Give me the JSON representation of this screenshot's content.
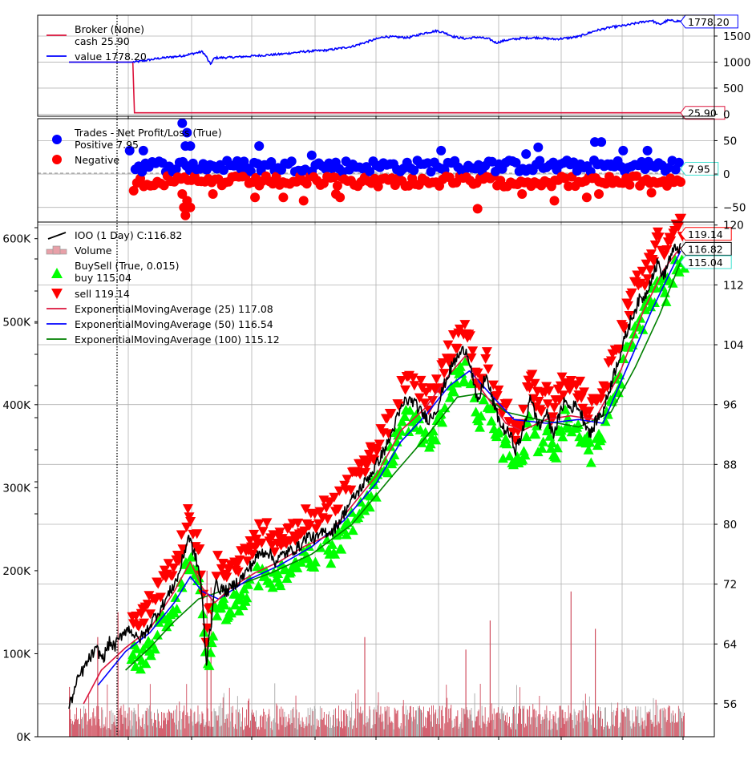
{
  "chart_data": [
    {
      "panel": "broker",
      "type": "line",
      "legend": {
        "title": "Broker (None)",
        "entries": [
          {
            "name": "cash 25.90",
            "color": "#dc143c"
          },
          {
            "name": "value 1778.20",
            "color": "#0000ff"
          }
        ]
      },
      "yticks": [
        "1500",
        "1000",
        "500",
        "0"
      ],
      "ytick_values": [
        1500,
        1000,
        500,
        0
      ],
      "ylim": [
        -40,
        1900
      ],
      "series": [
        {
          "name": "cash 25.90",
          "color": "#dc143c",
          "values": [
            [
              0,
              1000
            ],
            [
              79,
              1000
            ],
            [
              81,
              25.9
            ],
            [
              760,
              25.9
            ]
          ],
          "last_label": "25.90"
        },
        {
          "name": "value 1778.20",
          "color": "#0000ff",
          "values": [
            [
              0,
              1000
            ],
            [
              79,
              1000
            ],
            [
              90,
              1020
            ],
            [
              110,
              1070
            ],
            [
              140,
              1120
            ],
            [
              155,
              1170
            ],
            [
              165,
              1200
            ],
            [
              170,
              1100
            ],
            [
              172,
              1030
            ],
            [
              175,
              960
            ],
            [
              180,
              1080
            ],
            [
              200,
              1090
            ],
            [
              230,
              1120
            ],
            [
              260,
              1150
            ],
            [
              290,
              1200
            ],
            [
              320,
              1230
            ],
            [
              350,
              1300
            ],
            [
              375,
              1420
            ],
            [
              390,
              1490
            ],
            [
              405,
              1480
            ],
            [
              420,
              1470
            ],
            [
              440,
              1560
            ],
            [
              455,
              1600
            ],
            [
              465,
              1560
            ],
            [
              475,
              1490
            ],
            [
              490,
              1450
            ],
            [
              505,
              1480
            ],
            [
              520,
              1440
            ],
            [
              528,
              1370
            ],
            [
              540,
              1420
            ],
            [
              560,
              1460
            ],
            [
              580,
              1470
            ],
            [
              600,
              1440
            ],
            [
              615,
              1460
            ],
            [
              630,
              1490
            ],
            [
              650,
              1600
            ],
            [
              670,
              1670
            ],
            [
              690,
              1710
            ],
            [
              705,
              1760
            ],
            [
              720,
              1800
            ],
            [
              730,
              1720
            ],
            [
              740,
              1800
            ],
            [
              750,
              1790
            ],
            [
              760,
              1778.2
            ]
          ],
          "last_label": "1778.20"
        }
      ]
    },
    {
      "panel": "trades",
      "type": "scatter",
      "legend": {
        "title": "Trades - Net Profit/Loss (True)",
        "entries": [
          {
            "name": "Positive 7.95",
            "color": "#0000ff"
          },
          {
            "name": "Negative",
            "color": "#ff0000"
          }
        ]
      },
      "yticks": [
        "50",
        "0",
        "−50"
      ],
      "ytick_values": [
        50,
        0,
        -50
      ],
      "ylim": [
        -72,
        83
      ],
      "last_label": "7.95",
      "positive_points": [
        [
          75,
          35
        ],
        [
          92,
          35
        ],
        [
          140,
          76
        ],
        [
          146,
          62
        ],
        [
          144,
          42
        ],
        [
          150,
          42
        ],
        [
          235,
          42
        ],
        [
          565,
          30
        ],
        [
          580,
          40
        ],
        [
          460,
          35
        ],
        [
          650,
          48
        ],
        [
          658,
          48
        ],
        [
          685,
          35
        ],
        [
          715,
          35
        ],
        [
          670,
          12
        ],
        [
          300,
          28
        ]
      ],
      "negative_points": [
        [
          80,
          -25
        ],
        [
          140,
          -30
        ],
        [
          142,
          -50
        ],
        [
          144,
          -62
        ],
        [
          146,
          -40
        ],
        [
          150,
          -50
        ],
        [
          178,
          -30
        ],
        [
          230,
          -35
        ],
        [
          265,
          -35
        ],
        [
          290,
          -40
        ],
        [
          330,
          -30
        ],
        [
          335,
          -35
        ],
        [
          505,
          -52
        ],
        [
          560,
          -30
        ],
        [
          600,
          -40
        ],
        [
          640,
          -35
        ],
        [
          655,
          -30
        ],
        [
          720,
          -28
        ]
      ]
    },
    {
      "panel": "price",
      "type": "line",
      "legend": [
        {
          "name": "IOO (1 Day) C:116.82",
          "color": "#000000"
        },
        {
          "name": "Volume",
          "color": "#e8a0a8"
        },
        {
          "name": "BuySell (True, 0.015)",
          "color": "#00ff00"
        },
        {
          "name": "buy 115.04",
          "color": "#00ff00"
        },
        {
          "name": "sell 119.14",
          "color": "#ff0000"
        },
        {
          "name": "ExponentialMovingAverage (25) 117.08",
          "color": "#dc143c"
        },
        {
          "name": "ExponentialMovingAverage (50) 116.54",
          "color": "#0000ff"
        },
        {
          "name": "ExponentialMovingAverage (100) 115.12",
          "color": "#008000"
        }
      ],
      "yticks_right": [
        "120",
        "112",
        "104",
        "96",
        "88",
        "80",
        "72",
        "64",
        "56"
      ],
      "ytick_values_right": [
        120,
        112,
        104,
        96,
        88,
        80,
        72,
        64,
        56
      ],
      "ylim_right": [
        51.6,
        120.4
      ],
      "yticks_left": [
        "600K",
        "500K",
        "400K",
        "300K",
        "200K",
        "100K",
        "0K"
      ],
      "ytick_values_left": [
        600000,
        500000,
        400000,
        300000,
        200000,
        100000,
        0
      ],
      "ylim_left": [
        0,
        620000
      ],
      "last_labels": [
        {
          "text": "119.14",
          "value": 119.14,
          "border": "#ff0000"
        },
        {
          "text": "116.82",
          "value": 116.82,
          "border": "#000000"
        },
        {
          "text": "115.04",
          "value": 115.04,
          "border": "#40e0d0"
        }
      ],
      "close": [
        [
          0,
          55.5
        ],
        [
          5,
          57.2
        ],
        [
          12,
          59.5
        ],
        [
          20,
          61.0
        ],
        [
          28,
          62.5
        ],
        [
          35,
          63.2
        ],
        [
          42,
          62.0
        ],
        [
          50,
          64.2
        ],
        [
          56,
          63.6
        ],
        [
          62,
          64.6
        ],
        [
          68,
          65.8
        ],
        [
          76,
          66.0
        ],
        [
          85,
          64.5
        ],
        [
          95,
          65.5
        ],
        [
          105,
          67.5
        ],
        [
          115,
          69.0
        ],
        [
          125,
          71.0
        ],
        [
          135,
          73.0
        ],
        [
          142,
          76.0
        ],
        [
          148,
          78.5
        ],
        [
          152,
          77.0
        ],
        [
          158,
          75.0
        ],
        [
          162,
          73.0
        ],
        [
          165,
          70.0
        ],
        [
          168,
          64.0
        ],
        [
          170,
          61.0
        ],
        [
          172,
          64.0
        ],
        [
          176,
          67.0
        ],
        [
          180,
          72.0
        ],
        [
          185,
          71.5
        ],
        [
          195,
          71.0
        ],
        [
          205,
          72.0
        ],
        [
          215,
          73.0
        ],
        [
          225,
          74.5
        ],
        [
          235,
          76.0
        ],
        [
          245,
          76.5
        ],
        [
          255,
          75.0
        ],
        [
          265,
          76.0
        ],
        [
          275,
          76.5
        ],
        [
          285,
          77.0
        ],
        [
          295,
          78.5
        ],
        [
          305,
          78.0
        ],
        [
          315,
          79.0
        ],
        [
          325,
          79.0
        ],
        [
          335,
          80.5
        ],
        [
          345,
          82.5
        ],
        [
          355,
          84.0
        ],
        [
          365,
          85.5
        ],
        [
          375,
          87.0
        ],
        [
          385,
          89.0
        ],
        [
          395,
          91.0
        ],
        [
          405,
          94.0
        ],
        [
          415,
          96.5
        ],
        [
          425,
          96.5
        ],
        [
          435,
          95.0
        ],
        [
          445,
          94.0
        ],
        [
          455,
          95.5
        ],
        [
          465,
          99.0
        ],
        [
          475,
          101.5
        ],
        [
          485,
          103.0
        ],
        [
          490,
          103.5
        ],
        [
          495,
          102.0
        ],
        [
          500,
          99.0
        ],
        [
          505,
          96.0
        ],
        [
          510,
          98.0
        ],
        [
          515,
          100.0
        ],
        [
          520,
          98.0
        ],
        [
          528,
          95.0
        ],
        [
          535,
          93.0
        ],
        [
          545,
          92.0
        ],
        [
          552,
          90.0
        ],
        [
          560,
          92.0
        ],
        [
          566,
          94.5
        ],
        [
          570,
          97.5
        ],
        [
          575,
          95.0
        ],
        [
          582,
          93.0
        ],
        [
          590,
          95.0
        ],
        [
          598,
          92.0
        ],
        [
          605,
          94.0
        ],
        [
          612,
          96.5
        ],
        [
          620,
          95.5
        ],
        [
          628,
          96.0
        ],
        [
          636,
          94.0
        ],
        [
          645,
          92.0
        ],
        [
          652,
          94.0
        ],
        [
          660,
          95.0
        ],
        [
          668,
          98.0
        ],
        [
          676,
          101.0
        ],
        [
          685,
          104.0
        ],
        [
          695,
          107.5
        ],
        [
          705,
          110.0
        ],
        [
          712,
          110.5
        ],
        [
          720,
          113.0
        ],
        [
          728,
          115.0
        ],
        [
          735,
          113.0
        ],
        [
          742,
          115.5
        ],
        [
          750,
          117.0
        ],
        [
          756,
          116.8
        ]
      ],
      "ema25": [
        [
          18,
          56.0
        ],
        [
          40,
          60.5
        ],
        [
          70,
          63.5
        ],
        [
          100,
          66.0
        ],
        [
          130,
          71.0
        ],
        [
          150,
          75.0
        ],
        [
          165,
          71.5
        ],
        [
          180,
          69.5
        ],
        [
          200,
          71.5
        ],
        [
          230,
          73.5
        ],
        [
          260,
          75.0
        ],
        [
          290,
          77.0
        ],
        [
          320,
          78.5
        ],
        [
          350,
          82.5
        ],
        [
          380,
          86.5
        ],
        [
          410,
          92.5
        ],
        [
          440,
          95.5
        ],
        [
          470,
          100.0
        ],
        [
          490,
          102.5
        ],
        [
          510,
          98.0
        ],
        [
          540,
          93.5
        ],
        [
          560,
          92.5
        ],
        [
          590,
          94.0
        ],
        [
          620,
          94.5
        ],
        [
          650,
          94.0
        ],
        [
          680,
          100.0
        ],
        [
          710,
          108.5
        ],
        [
          735,
          114.0
        ],
        [
          756,
          117.08
        ]
      ],
      "ema50": [
        [
          36,
          58.5
        ],
        [
          70,
          63.0
        ],
        [
          100,
          65.5
        ],
        [
          130,
          69.5
        ],
        [
          150,
          73.0
        ],
        [
          165,
          71.0
        ],
        [
          185,
          70.0
        ],
        [
          220,
          72.5
        ],
        [
          260,
          74.5
        ],
        [
          300,
          77.0
        ],
        [
          340,
          80.5
        ],
        [
          380,
          85.5
        ],
        [
          410,
          91.0
        ],
        [
          440,
          94.5
        ],
        [
          470,
          98.5
        ],
        [
          495,
          100.5
        ],
        [
          520,
          97.5
        ],
        [
          550,
          94.0
        ],
        [
          590,
          93.5
        ],
        [
          630,
          94.0
        ],
        [
          660,
          93.5
        ],
        [
          690,
          101.0
        ],
        [
          720,
          108.5
        ],
        [
          740,
          113.0
        ],
        [
          756,
          116.54
        ]
      ],
      "ema100": [
        [
          70,
          60.5
        ],
        [
          100,
          63.5
        ],
        [
          130,
          67.0
        ],
        [
          160,
          70.0
        ],
        [
          200,
          71.5
        ],
        [
          250,
          73.5
        ],
        [
          300,
          76.0
        ],
        [
          350,
          80.0
        ],
        [
          400,
          86.5
        ],
        [
          440,
          91.5
        ],
        [
          480,
          97.0
        ],
        [
          510,
          97.5
        ],
        [
          540,
          95.0
        ],
        [
          580,
          94.0
        ],
        [
          630,
          93.0
        ],
        [
          670,
          95.0
        ],
        [
          700,
          101.0
        ],
        [
          730,
          108.0
        ],
        [
          756,
          115.12
        ]
      ],
      "volume_note": "daily volume bars",
      "volume_spikes": [
        [
          0,
          60000
        ],
        [
          35,
          120000
        ],
        [
          60,
          150000
        ],
        [
          170,
          200000
        ],
        [
          175,
          180000
        ],
        [
          365,
          120000
        ],
        [
          490,
          105000
        ],
        [
          520,
          140000
        ],
        [
          620,
          175000
        ],
        [
          650,
          130000
        ]
      ]
    }
  ]
}
